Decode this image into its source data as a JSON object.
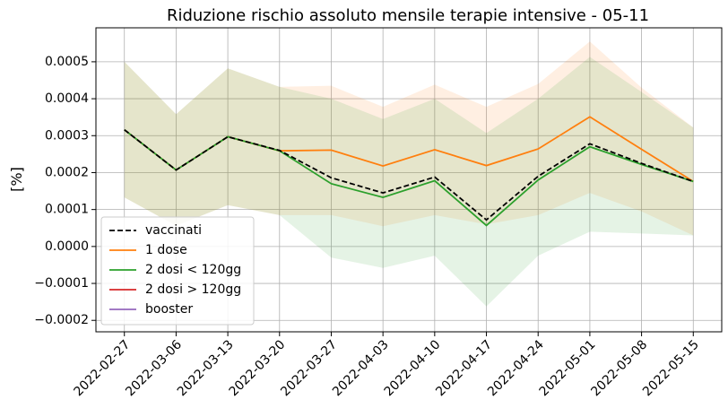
{
  "chart_data": {
    "type": "line",
    "title": "Riduzione rischio assoluto mensile terapie intensive - 05-11",
    "y_label": "[%]",
    "categories": [
      "2022-02-27",
      "2022-03-06",
      "2022-03-13",
      "2022-03-20",
      "2022-03-27",
      "2022-04-03",
      "2022-04-10",
      "2022-04-17",
      "2022-04-24",
      "2022-05-01",
      "2022-05-08",
      "2022-05-15"
    ],
    "ylim": [
      -0.000231,
      0.000592
    ],
    "yticks": [
      {
        "value": -0.0002,
        "label": "−0.0002"
      },
      {
        "value": -0.0001,
        "label": "−0.0001"
      },
      {
        "value": 0,
        "label": "0.0000"
      },
      0.0001,
      0.0002,
      0.0003,
      0.0004,
      0.0005
    ],
    "grid": true,
    "legend": "lower left",
    "series": [
      {
        "name": "vaccinati",
        "color": "#000000",
        "dash": true,
        "values": [
          0.000316,
          0.000207,
          0.000297,
          0.00026,
          0.000186,
          0.000145,
          0.000188,
          7.2e-05,
          0.00019,
          0.000278,
          0.000225,
          0.000176
        ]
      },
      {
        "name": "1 dose",
        "color": "#ff7f0e",
        "values": [
          0.000316,
          0.000207,
          0.000297,
          0.000259,
          0.000261,
          0.000218,
          0.000262,
          0.000219,
          0.000264,
          0.000351,
          0.000263,
          0.000176
        ],
        "upper": [
          0.0005,
          0.000358,
          0.000482,
          0.000432,
          0.000435,
          0.000378,
          0.000438,
          0.000378,
          0.00044,
          0.000555,
          0.00043,
          0.000322
        ],
        "lower": [
          0.000133,
          5.6e-05,
          0.000112,
          8.5e-05,
          8.5e-05,
          5.5e-05,
          8.5e-05,
          6e-05,
          8.5e-05,
          0.000145,
          9.5e-05,
          3e-05
        ]
      },
      {
        "name": "2 dosi < 120gg",
        "color": "#2ca02c",
        "values": [
          0.000316,
          0.000207,
          0.000297,
          0.000259,
          0.00017,
          0.000133,
          0.000178,
          5.7e-05,
          0.00018,
          0.00027,
          0.000222,
          0.000176
        ],
        "upper": [
          0.0005,
          0.000358,
          0.000482,
          0.000432,
          0.0004,
          0.000345,
          0.0004,
          0.000307,
          0.0004,
          0.000513,
          0.000418,
          0.000322
        ],
        "lower": [
          0.000133,
          5.6e-05,
          0.000112,
          8.5e-05,
          -3e-05,
          -5.8e-05,
          -2.5e-05,
          -0.000162,
          -2.5e-05,
          4e-05,
          3.5e-05,
          3e-05
        ]
      },
      {
        "name": "2 dosi > 120gg",
        "color": "#d62728",
        "values": [
          null,
          null,
          null,
          null,
          null,
          null,
          null,
          null,
          null,
          null,
          null,
          null
        ]
      },
      {
        "name": "booster",
        "color": "#9467bd",
        "values": [
          null,
          null,
          null,
          null,
          null,
          null,
          null,
          null,
          null,
          null,
          null,
          null
        ]
      }
    ]
  }
}
